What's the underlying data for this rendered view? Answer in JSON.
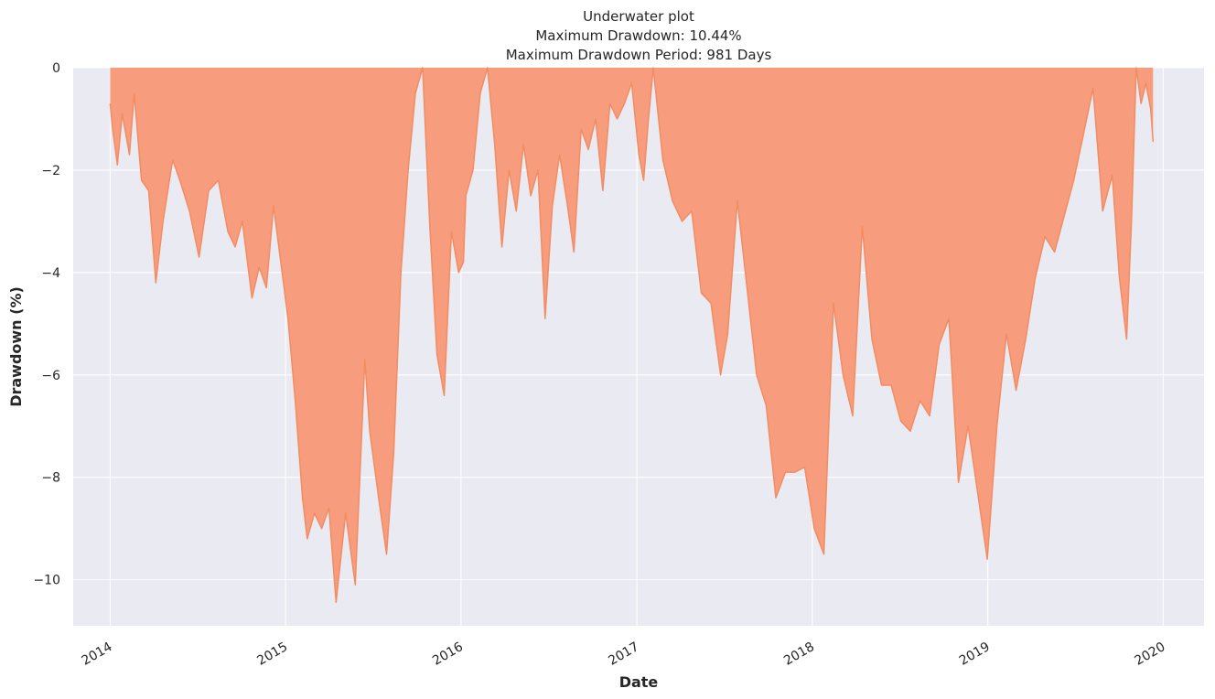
{
  "chart_data": {
    "type": "area",
    "title_lines": [
      "Underwater plot",
      "Maximum Drawdown: 10.44%",
      "Maximum Drawdown Period: 981 Days"
    ],
    "xlabel": "Date",
    "ylabel": "Drawdown (%)",
    "xlim": [
      "2013-10-16",
      "2020-03-26"
    ],
    "ylim": [
      -10.9,
      0
    ],
    "x_ticks": [
      "2014",
      "2015",
      "2016",
      "2017",
      "2018",
      "2019",
      "2020"
    ],
    "y_ticks": [
      0,
      -2,
      -4,
      -6,
      -8,
      -10
    ],
    "y_tick_labels": [
      "0",
      "−2",
      "−4",
      "−6",
      "−8",
      "−10"
    ],
    "grid": true,
    "fill_color": "#f79d7d",
    "line_color": "#f28c62",
    "background_color": "#eaeaf2",
    "series": [
      {
        "x": [
          "2014-01-01",
          "2014-01-06",
          "2014-01-16",
          "2014-01-26",
          "2014-02-10",
          "2014-02-20",
          "2014-03-07",
          "2014-03-22",
          "2014-04-06",
          "2014-04-21",
          "2014-05-11",
          "2014-05-26",
          "2014-06-15",
          "2014-07-05",
          "2014-07-25",
          "2014-08-14",
          "2014-09-03",
          "2014-09-18",
          "2014-10-03",
          "2014-10-23",
          "2014-11-07",
          "2014-11-22",
          "2014-12-07",
          "2014-12-22",
          "2015-01-06",
          "2015-01-21",
          "2015-02-05",
          "2015-02-15",
          "2015-03-02",
          "2015-03-17",
          "2015-04-01",
          "2015-04-16",
          "2015-05-06",
          "2015-05-26",
          "2015-06-15",
          "2015-06-25",
          "2015-07-15",
          "2015-07-30",
          "2015-08-14",
          "2015-08-29",
          "2015-09-13",
          "2015-09-28",
          "2015-10-13",
          "2015-10-28",
          "2015-11-12",
          "2015-11-27",
          "2015-12-12",
          "2015-12-27",
          "2016-01-06",
          "2016-01-11",
          "2016-01-26",
          "2016-02-10",
          "2016-02-25",
          "2016-03-11",
          "2016-03-26",
          "2016-04-10",
          "2016-04-25",
          "2016-05-10",
          "2016-05-25",
          "2016-06-09",
          "2016-06-24",
          "2016-07-09",
          "2016-07-24",
          "2016-08-08",
          "2016-08-23",
          "2016-09-07",
          "2016-09-22",
          "2016-10-07",
          "2016-10-22",
          "2016-11-06",
          "2016-11-21",
          "2016-12-06",
          "2016-12-21",
          "2017-01-05",
          "2017-01-15",
          "2017-01-25",
          "2017-02-04",
          "2017-02-24",
          "2017-03-16",
          "2017-04-05",
          "2017-04-25",
          "2017-05-15",
          "2017-06-04",
          "2017-06-24",
          "2017-07-09",
          "2017-07-29",
          "2017-08-18",
          "2017-09-07",
          "2017-09-27",
          "2017-10-17",
          "2017-11-06",
          "2017-11-26",
          "2017-12-16",
          "2018-01-05",
          "2018-01-25",
          "2018-02-14",
          "2018-03-06",
          "2018-03-26",
          "2018-04-15",
          "2018-05-05",
          "2018-05-25",
          "2018-06-14",
          "2018-07-04",
          "2018-07-24",
          "2018-08-13",
          "2018-09-02",
          "2018-09-22",
          "2018-10-12",
          "2018-11-01",
          "2018-11-21",
          "2018-12-11",
          "2018-12-31",
          "2019-01-20",
          "2019-02-09",
          "2019-03-01",
          "2019-03-21",
          "2019-04-10",
          "2019-04-30",
          "2019-05-20",
          "2019-06-09",
          "2019-06-29",
          "2019-07-19",
          "2019-08-08",
          "2019-08-28",
          "2019-09-17",
          "2019-10-02",
          "2019-10-17",
          "2019-10-27",
          "2019-11-06",
          "2019-11-16",
          "2019-11-26",
          "2019-12-06",
          "2019-12-11"
        ],
        "values": [
          -0.7,
          -1.2,
          -1.9,
          -0.9,
          -1.7,
          -0.5,
          -2.2,
          -2.4,
          -4.2,
          -3.0,
          -1.8,
          -2.2,
          -2.8,
          -3.7,
          -2.4,
          -2.2,
          -3.2,
          -3.5,
          -3.0,
          -4.5,
          -3.9,
          -4.3,
          -2.7,
          -3.8,
          -4.9,
          -6.5,
          -8.4,
          -9.2,
          -8.7,
          -9.0,
          -8.6,
          -10.44,
          -8.7,
          -10.1,
          -5.7,
          -7.1,
          -8.5,
          -9.5,
          -7.5,
          -4.0,
          -2.0,
          -0.5,
          0,
          -3.1,
          -5.6,
          -6.4,
          -3.2,
          -4.0,
          -3.8,
          -2.5,
          -2.0,
          -0.5,
          0,
          -1.5,
          -3.5,
          -2.0,
          -2.8,
          -1.5,
          -2.5,
          -2.0,
          -4.9,
          -2.7,
          -1.7,
          -2.6,
          -3.6,
          -1.2,
          -1.6,
          -1.0,
          -2.4,
          -0.7,
          -1.0,
          -0.7,
          -0.3,
          -1.7,
          -2.2,
          -1.0,
          0,
          -1.8,
          -2.6,
          -3.0,
          -2.8,
          -4.4,
          -4.6,
          -6.0,
          -5.2,
          -2.6,
          -4.3,
          -6.0,
          -6.6,
          -8.4,
          -7.9,
          -7.9,
          -7.8,
          -9.0,
          -9.5,
          -4.6,
          -6.0,
          -6.8,
          -3.1,
          -5.3,
          -6.2,
          -6.2,
          -6.9,
          -7.1,
          -6.5,
          -6.8,
          -5.4,
          -4.9,
          -8.1,
          -7.0,
          -8.3,
          -9.6,
          -7.0,
          -5.2,
          -6.3,
          -5.3,
          -4.1,
          -3.3,
          -3.6,
          -2.9,
          -2.2,
          -1.3,
          -0.4,
          -2.8,
          -2.1,
          -4.1,
          -5.3,
          -3.0,
          0,
          -0.7,
          -0.3,
          -0.8,
          -1.45
        ]
      }
    ]
  }
}
